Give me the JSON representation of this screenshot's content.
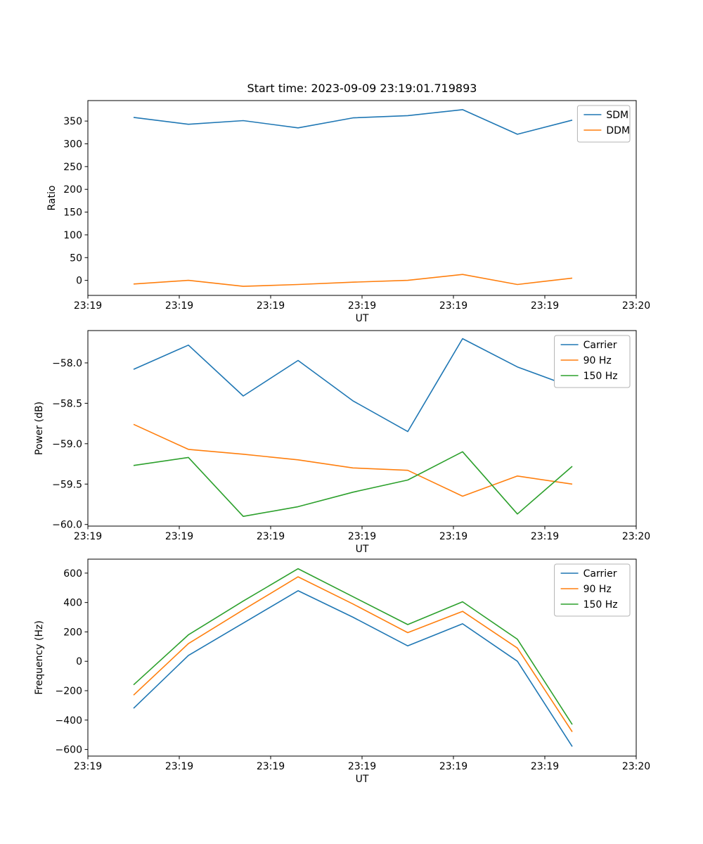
{
  "figure": {
    "title": "Start time: 2023-09-09 23:19:01.719893"
  },
  "colors": {
    "blue": "#1f77b4",
    "orange": "#ff7f0e",
    "green": "#2ca02c"
  },
  "chart_data": [
    {
      "type": "line",
      "title": "Start time: 2023-09-09 23:19:01.719893",
      "xlabel": "UT",
      "ylabel": "Ratio",
      "legend_position": "upper right",
      "grid": false,
      "x": [
        5,
        11,
        17,
        23,
        29,
        35,
        41,
        47,
        53
      ],
      "xlim": [
        0,
        60
      ],
      "ylim": [
        -33,
        395
      ],
      "xticks": [
        {
          "v": 0,
          "label": "23:19"
        },
        {
          "v": 10,
          "label": "23:19"
        },
        {
          "v": 20,
          "label": "23:19"
        },
        {
          "v": 30,
          "label": "23:19"
        },
        {
          "v": 40,
          "label": "23:19"
        },
        {
          "v": 50,
          "label": "23:19"
        },
        {
          "v": 60,
          "label": "23:20"
        }
      ],
      "yticks": [
        {
          "v": 0,
          "label": "0"
        },
        {
          "v": 50,
          "label": "50"
        },
        {
          "v": 100,
          "label": "100"
        },
        {
          "v": 150,
          "label": "150"
        },
        {
          "v": 200,
          "label": "200"
        },
        {
          "v": 250,
          "label": "250"
        },
        {
          "v": 300,
          "label": "300"
        },
        {
          "v": 350,
          "label": "350"
        }
      ],
      "series": [
        {
          "name": "SDM",
          "color": "blue",
          "values": [
            358,
            343,
            351,
            335,
            357,
            362,
            375,
            321,
            352
          ]
        },
        {
          "name": "DDM",
          "color": "orange",
          "values": [
            -8,
            0,
            -13,
            -9,
            -4,
            0,
            13,
            -9,
            5
          ]
        }
      ]
    },
    {
      "type": "line",
      "title": "",
      "xlabel": "UT",
      "ylabel": "Power (dB)",
      "legend_position": "upper right",
      "grid": false,
      "x": [
        5,
        11,
        17,
        23,
        29,
        35,
        41,
        47,
        53
      ],
      "xlim": [
        0,
        60
      ],
      "ylim": [
        -60.02,
        -57.6
      ],
      "xticks": [
        {
          "v": 0,
          "label": "23:19"
        },
        {
          "v": 10,
          "label": "23:19"
        },
        {
          "v": 20,
          "label": "23:19"
        },
        {
          "v": 30,
          "label": "23:19"
        },
        {
          "v": 40,
          "label": "23:19"
        },
        {
          "v": 50,
          "label": "23:19"
        },
        {
          "v": 60,
          "label": "23:20"
        }
      ],
      "yticks": [
        {
          "v": -60.0,
          "label": "−60.0"
        },
        {
          "v": -59.5,
          "label": "−59.5"
        },
        {
          "v": -59.0,
          "label": "−59.0"
        },
        {
          "v": -58.5,
          "label": "−58.5"
        },
        {
          "v": -58.0,
          "label": "−58.0"
        }
      ],
      "series": [
        {
          "name": "Carrier",
          "color": "blue",
          "values": [
            -58.08,
            -57.78,
            -58.41,
            -57.97,
            -58.47,
            -58.85,
            -57.7,
            -58.05,
            -58.3
          ]
        },
        {
          "name": "90 Hz",
          "color": "orange",
          "values": [
            -58.76,
            -59.07,
            -59.13,
            -59.2,
            -59.3,
            -59.33,
            -59.65,
            -59.4,
            -59.5
          ]
        },
        {
          "name": "150 Hz",
          "color": "green",
          "values": [
            -59.27,
            -59.17,
            -59.9,
            -59.78,
            -59.6,
            -59.45,
            -59.1,
            -59.87,
            -59.28
          ]
        }
      ]
    },
    {
      "type": "line",
      "title": "",
      "xlabel": "UT",
      "ylabel": "Frequency (Hz)",
      "legend_position": "upper right",
      "grid": false,
      "x": [
        5,
        11,
        17,
        23,
        29,
        35,
        41,
        47,
        53
      ],
      "xlim": [
        0,
        60
      ],
      "ylim": [
        -645,
        695
      ],
      "xticks": [
        {
          "v": 0,
          "label": "23:19"
        },
        {
          "v": 10,
          "label": "23:19"
        },
        {
          "v": 20,
          "label": "23:19"
        },
        {
          "v": 30,
          "label": "23:19"
        },
        {
          "v": 40,
          "label": "23:19"
        },
        {
          "v": 50,
          "label": "23:19"
        },
        {
          "v": 60,
          "label": "23:20"
        }
      ],
      "yticks": [
        {
          "v": -600,
          "label": "−600"
        },
        {
          "v": -400,
          "label": "−400"
        },
        {
          "v": -200,
          "label": "−200"
        },
        {
          "v": 0,
          "label": "0"
        },
        {
          "v": 200,
          "label": "200"
        },
        {
          "v": 400,
          "label": "400"
        },
        {
          "v": 600,
          "label": "600"
        }
      ],
      "series": [
        {
          "name": "Carrier",
          "color": "blue",
          "values": [
            -320,
            40,
            260,
            480,
            300,
            105,
            255,
            0,
            -580
          ]
        },
        {
          "name": "90 Hz",
          "color": "orange",
          "values": [
            -230,
            120,
            350,
            575,
            390,
            195,
            340,
            90,
            -480
          ]
        },
        {
          "name": "150 Hz",
          "color": "green",
          "values": [
            -160,
            180,
            410,
            630,
            440,
            250,
            405,
            150,
            -430
          ]
        }
      ]
    }
  ]
}
